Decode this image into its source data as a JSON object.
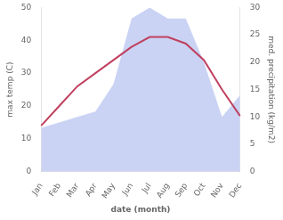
{
  "chart_data": {
    "type": "line",
    "categories": [
      "Jan",
      "Feb",
      "Mar",
      "Apr",
      "May",
      "Jun",
      "Jul",
      "Aug",
      "Sep",
      "Oct",
      "Nov",
      "Dec"
    ],
    "series": [
      {
        "type": "line",
        "color": "#c04060",
        "values": [
          14,
          20,
          26,
          30,
          34,
          38,
          41,
          41,
          39,
          34,
          25,
          17
        ]
      },
      {
        "type": "area",
        "color": "#b8c4f0",
        "axis": "y2",
        "values": [
          8,
          9,
          10,
          11,
          16,
          28,
          30,
          28,
          28,
          20,
          10,
          14
        ]
      }
    ],
    "xlabel": "date (month)",
    "ylabel": "max temp (C)",
    "y2label": "med. precipitation (kg/m2)",
    "ylim": [
      0,
      50
    ],
    "yticks": [
      0,
      10,
      20,
      30,
      40,
      50
    ],
    "y2lim": [
      0,
      30
    ],
    "y2ticks": [
      0,
      5,
      10,
      15,
      20,
      25,
      30
    ],
    "grid": false
  }
}
